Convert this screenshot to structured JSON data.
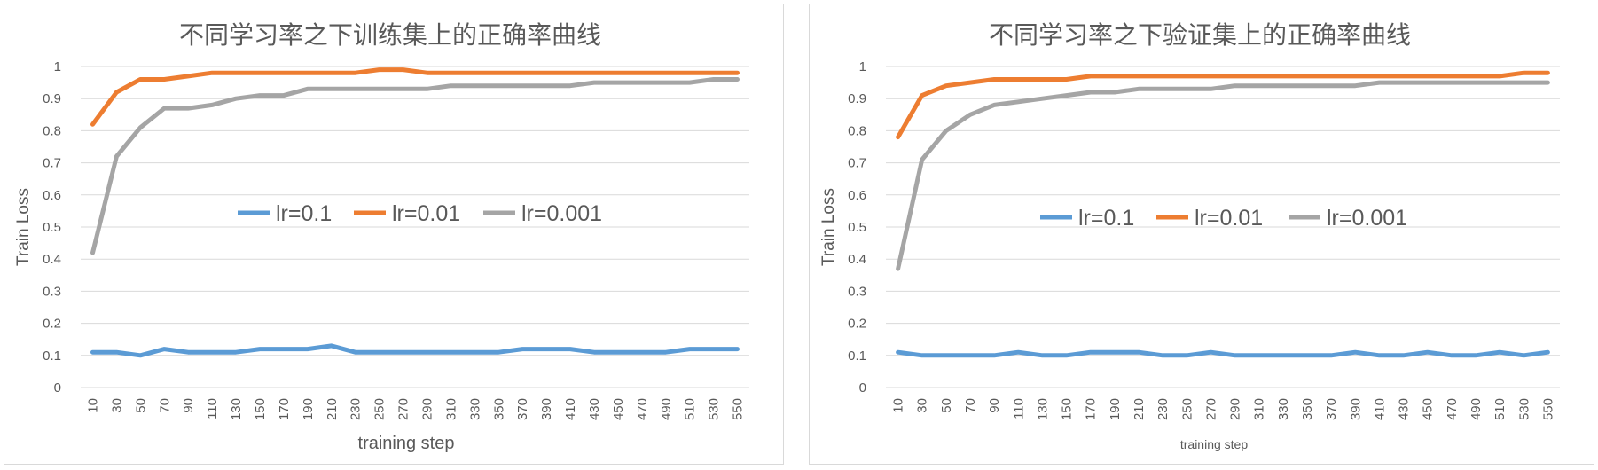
{
  "chart_data": [
    {
      "type": "line",
      "title": "不同学习率之下训练集上的正确率曲线",
      "xlabel": "training   step",
      "ylabel": "Train  Loss",
      "ylim": [
        0,
        1
      ],
      "yticks": [
        "0",
        "0.1",
        "0.2",
        "0.3",
        "0.4",
        "0.5",
        "0.6",
        "0.7",
        "0.8",
        "0.9",
        "1"
      ],
      "categories": [
        "10",
        "30",
        "50",
        "70",
        "90",
        "110",
        "130",
        "150",
        "170",
        "190",
        "210",
        "230",
        "250",
        "270",
        "290",
        "310",
        "330",
        "350",
        "370",
        "390",
        "410",
        "430",
        "450",
        "470",
        "490",
        "510",
        "530",
        "550"
      ],
      "grid": "horizontal",
      "legend": "center",
      "colors": {
        "lr=0.1": "#5b9bd5",
        "lr=0.01": "#ed7d31",
        "lr=0.001": "#a5a5a5"
      },
      "series": [
        {
          "name": "lr=0.1",
          "values": [
            0.11,
            0.11,
            0.1,
            0.12,
            0.11,
            0.11,
            0.11,
            0.12,
            0.12,
            0.12,
            0.13,
            0.11,
            0.11,
            0.11,
            0.11,
            0.11,
            0.11,
            0.11,
            0.12,
            0.12,
            0.12,
            0.11,
            0.11,
            0.11,
            0.11,
            0.12,
            0.12,
            0.12
          ]
        },
        {
          "name": "lr=0.01",
          "values": [
            0.82,
            0.92,
            0.96,
            0.96,
            0.97,
            0.98,
            0.98,
            0.98,
            0.98,
            0.98,
            0.98,
            0.98,
            0.99,
            0.99,
            0.98,
            0.98,
            0.98,
            0.98,
            0.98,
            0.98,
            0.98,
            0.98,
            0.98,
            0.98,
            0.98,
            0.98,
            0.98,
            0.98
          ]
        },
        {
          "name": "lr=0.001",
          "values": [
            0.42,
            0.72,
            0.81,
            0.87,
            0.87,
            0.88,
            0.9,
            0.91,
            0.91,
            0.93,
            0.93,
            0.93,
            0.93,
            0.93,
            0.93,
            0.94,
            0.94,
            0.94,
            0.94,
            0.94,
            0.94,
            0.95,
            0.95,
            0.95,
            0.95,
            0.95,
            0.96,
            0.96
          ]
        }
      ]
    },
    {
      "type": "line",
      "title": "不同学习率之下验证集上的正确率曲线",
      "xlabel": "training   step",
      "ylabel": "Train  Loss",
      "ylim": [
        0,
        1
      ],
      "yticks": [
        "0",
        "0.1",
        "0.2",
        "0.3",
        "0.4",
        "0.5",
        "0.6",
        "0.7",
        "0.8",
        "0.9",
        "1"
      ],
      "categories": [
        "10",
        "30",
        "50",
        "70",
        "90",
        "110",
        "130",
        "150",
        "170",
        "190",
        "210",
        "230",
        "250",
        "270",
        "290",
        "310",
        "330",
        "350",
        "370",
        "390",
        "410",
        "430",
        "450",
        "470",
        "490",
        "510",
        "530",
        "550"
      ],
      "grid": "horizontal",
      "legend": "center",
      "colors": {
        "lr=0.1": "#5b9bd5",
        "lr=0.01": "#ed7d31",
        "lr=0.001": "#a5a5a5"
      },
      "series": [
        {
          "name": "lr=0.1",
          "values": [
            0.11,
            0.1,
            0.1,
            0.1,
            0.1,
            0.11,
            0.1,
            0.1,
            0.11,
            0.11,
            0.11,
            0.1,
            0.1,
            0.11,
            0.1,
            0.1,
            0.1,
            0.1,
            0.1,
            0.11,
            0.1,
            0.1,
            0.11,
            0.1,
            0.1,
            0.11,
            0.1,
            0.11
          ]
        },
        {
          "name": "lr=0.01",
          "values": [
            0.78,
            0.91,
            0.94,
            0.95,
            0.96,
            0.96,
            0.96,
            0.96,
            0.97,
            0.97,
            0.97,
            0.97,
            0.97,
            0.97,
            0.97,
            0.97,
            0.97,
            0.97,
            0.97,
            0.97,
            0.97,
            0.97,
            0.97,
            0.97,
            0.97,
            0.97,
            0.98,
            0.98
          ]
        },
        {
          "name": "lr=0.001",
          "values": [
            0.37,
            0.71,
            0.8,
            0.85,
            0.88,
            0.89,
            0.9,
            0.91,
            0.92,
            0.92,
            0.93,
            0.93,
            0.93,
            0.93,
            0.94,
            0.94,
            0.94,
            0.94,
            0.94,
            0.94,
            0.95,
            0.95,
            0.95,
            0.95,
            0.95,
            0.95,
            0.95,
            0.95
          ]
        }
      ]
    }
  ]
}
